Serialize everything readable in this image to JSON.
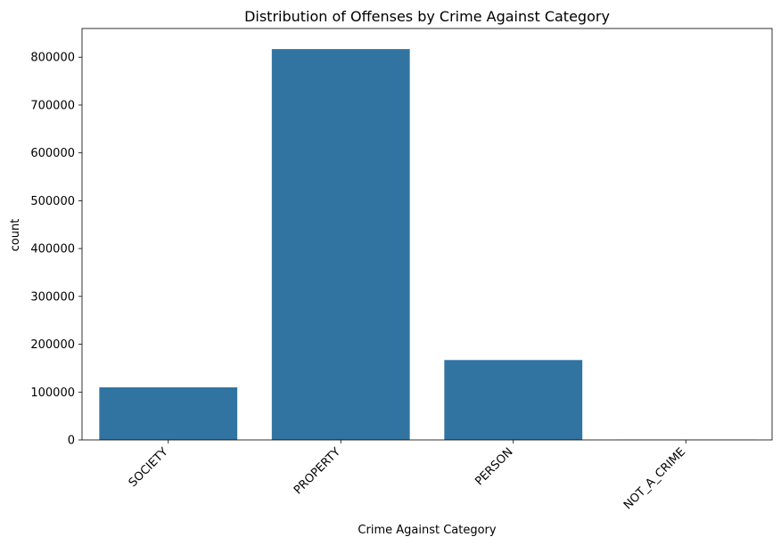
{
  "chart_data": {
    "type": "bar",
    "title": "Distribution of Offenses by Crime Against Category",
    "xlabel": "Crime Against Category",
    "ylabel": "count",
    "categories": [
      "SOCIETY",
      "PROPERTY",
      "PERSON",
      "NOT_A_CRIME"
    ],
    "values": [
      110000,
      817000,
      167000,
      500
    ],
    "ylim": [
      0,
      860000
    ],
    "yticks": [
      0,
      100000,
      200000,
      300000,
      400000,
      500000,
      600000,
      700000,
      800000
    ],
    "ytick_labels": [
      "0",
      "100000",
      "200000",
      "300000",
      "400000",
      "500000",
      "600000",
      "700000",
      "800000"
    ],
    "bar_color": "#3274a1",
    "grid": false,
    "legend": "none",
    "xtick_rotation": 45
  }
}
